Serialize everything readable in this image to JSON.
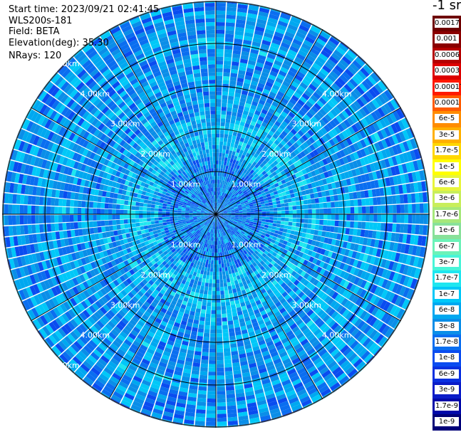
{
  "header": {
    "start_time": "Start time: 2023/09/21 02:41:45",
    "instrument": "WLS200s-181",
    "field": "Field: BETA",
    "elevation": "Elevation(deg): 35.30",
    "nrays": "NRays: 120"
  },
  "unit_label": "-1 sr",
  "chart_data": {
    "type": "heatmap",
    "projection": "polar-ppi",
    "field": "BETA",
    "rays": 120,
    "max_range_km": 5.0,
    "range_rings_km": [
      1,
      2,
      3,
      4,
      5
    ],
    "range_labels": [
      "1.00km",
      "2.00km",
      "3.00km",
      "4.00km",
      "5.00km"
    ],
    "spokes_deg": [
      0,
      30,
      60,
      90,
      120,
      150,
      180,
      210,
      240,
      270,
      300,
      330
    ],
    "dominant_value_range": [
      "1e-8",
      "1.7e-7"
    ],
    "colorbar": {
      "ticks": [
        "0.0017",
        "0.001",
        "0.0006",
        "0.0003",
        "0.00017",
        "0.0001",
        "6e-5",
        "3e-5",
        "1.7e-5",
        "1e-5",
        "6e-6",
        "3e-6",
        "1.7e-6",
        "1e-6",
        "6e-7",
        "3e-7",
        "1.7e-7",
        "1e-7",
        "6e-8",
        "3e-8",
        "1.7e-8",
        "1e-8",
        "6e-9",
        "3e-9",
        "1.7e-9",
        "1e-9"
      ],
      "colors": [
        "#6e0000",
        "#8b0000",
        "#b50000",
        "#dd0000",
        "#ff1a00",
        "#ff5a00",
        "#ff8c00",
        "#ffb000",
        "#ffd700",
        "#ffff00",
        "#e8f53c",
        "#c8ee5a",
        "#a6e87a",
        "#88e19a",
        "#6cf2b8",
        "#48f5d8",
        "#1ee6f0",
        "#00c8f8",
        "#00a8f0",
        "#0a8ee8",
        "#0a6ef0",
        "#0a4cf0",
        "#0a30e0",
        "#0a1cc8",
        "#0008a8",
        "#000078"
      ]
    }
  }
}
